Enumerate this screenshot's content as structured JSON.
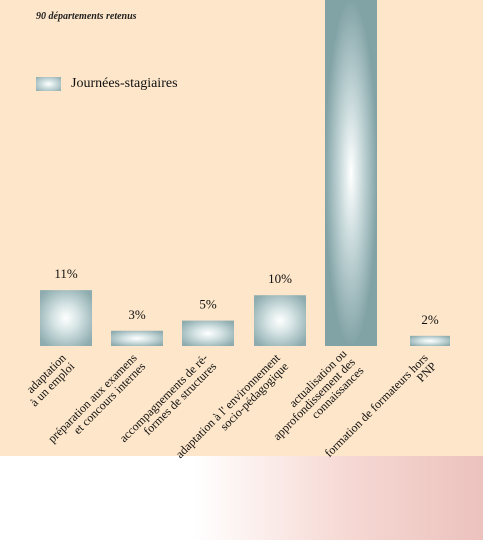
{
  "chart_data": {
    "type": "bar",
    "subtitle": "90 départements retenus",
    "legend": [
      "Journées-stagiaires"
    ],
    "series": [
      {
        "name": "Journées-stagiaires"
      }
    ],
    "categories": [
      [
        "adaptation",
        "à un emploi"
      ],
      [
        "préparation aux examens",
        "et concours internes"
      ],
      [
        "accompagnements de ré-",
        "formes de structures"
      ],
      [
        "adaptation à l' environnement",
        "socio-pédagogique"
      ],
      [
        "actualisation ou",
        "approfondissement des",
        "connaissances"
      ],
      [
        "formation de formateurs hors",
        "PNP"
      ]
    ],
    "values": [
      11,
      3,
      5,
      10,
      69,
      2
    ],
    "value_labels": [
      "11%",
      "3%",
      "5%",
      "10%",
      "",
      "2%"
    ],
    "unit": "%",
    "ylim": [
      0,
      70
    ],
    "colors": {
      "bar_center": "#ffffff",
      "bar_mid": "#d5e3e4",
      "bar_edge": "#8eacaf",
      "background": "#fde6c9"
    }
  }
}
